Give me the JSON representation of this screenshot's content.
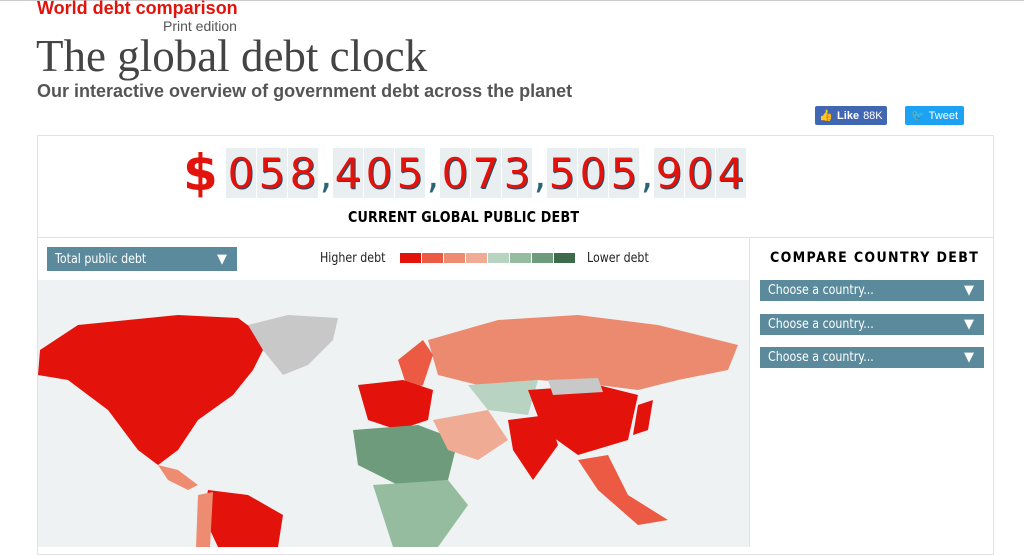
{
  "kicker": "World debt comparison",
  "print_edition": "Print edition",
  "headline": "The global debt clock",
  "subtitle": "Our interactive overview of government debt across the planet",
  "social": {
    "like_label": "Like",
    "like_count": "88K",
    "tweet_label": "Tweet"
  },
  "clock": {
    "currency": "$",
    "groups": [
      "058",
      "405",
      "073",
      "505",
      "904"
    ],
    "label": "CURRENT GLOBAL PUBLIC DEBT"
  },
  "metric_select": {
    "value": "Total public debt"
  },
  "legend": {
    "high": "Higher debt",
    "low": "Lower debt",
    "colors": [
      "#e3120b",
      "#ec5a44",
      "#ee8c72",
      "#f0ab95",
      "#b9d3c2",
      "#95bc9e",
      "#6e9b7c",
      "#3d6b4c"
    ]
  },
  "compare": {
    "title": "COMPARE COUNTRY DEBT",
    "selects": [
      "Choose a country...",
      "Choose a country...",
      "Choose a country..."
    ]
  },
  "colors": {
    "accent": "#e3120b",
    "control": "#5a8a9c",
    "map_bg": "#eef2f3",
    "no_data": "#c8c8c8"
  }
}
